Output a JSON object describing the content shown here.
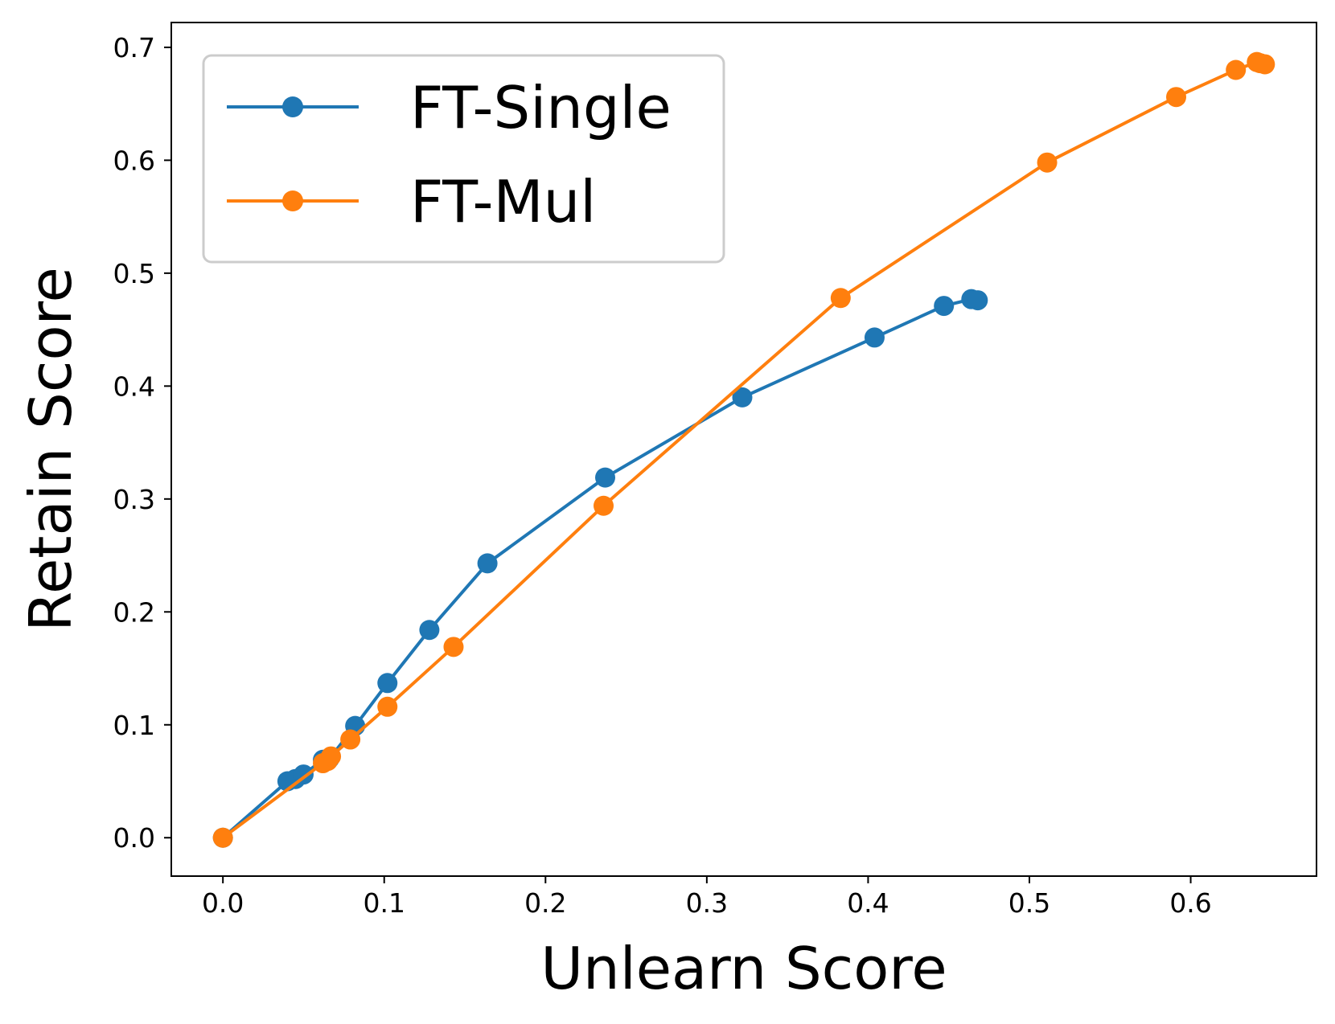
{
  "chart_data": {
    "type": "line",
    "title": "",
    "xlabel": "Unlearn Score",
    "ylabel": "Retain Score",
    "xlim": [
      -0.032,
      0.678
    ],
    "ylim": [
      -0.034,
      0.722
    ],
    "xticks": [
      "0.0",
      "0.1",
      "0.2",
      "0.3",
      "0.4",
      "0.5",
      "0.6"
    ],
    "yticks": [
      "0.0",
      "0.1",
      "0.2",
      "0.3",
      "0.4",
      "0.5",
      "0.6",
      "0.7"
    ],
    "xtick_values": [
      0.0,
      0.1,
      0.2,
      0.3,
      0.4,
      0.5,
      0.6
    ],
    "ytick_values": [
      0.0,
      0.1,
      0.2,
      0.3,
      0.4,
      0.5,
      0.6,
      0.7
    ],
    "grid": false,
    "legend_position": "top-left",
    "series": [
      {
        "name": "FT-Single",
        "color": "#1f77b4",
        "x": [
          0.0,
          0.04,
          0.045,
          0.05,
          0.062,
          0.066,
          0.082,
          0.102,
          0.128,
          0.164,
          0.237,
          0.322,
          0.404,
          0.447,
          0.464,
          0.468
        ],
        "y": [
          0.0,
          0.05,
          0.052,
          0.056,
          0.069,
          0.07,
          0.099,
          0.137,
          0.184,
          0.243,
          0.319,
          0.39,
          0.443,
          0.471,
          0.477,
          0.476
        ]
      },
      {
        "name": "FT-Mul",
        "color": "#ff7f0e",
        "x": [
          0.0,
          0.062,
          0.065,
          0.067,
          0.079,
          0.102,
          0.143,
          0.236,
          0.383,
          0.511,
          0.591,
          0.628,
          0.641,
          0.643,
          0.646
        ],
        "y": [
          0.0,
          0.066,
          0.068,
          0.072,
          0.087,
          0.116,
          0.169,
          0.294,
          0.478,
          0.598,
          0.656,
          0.68,
          0.687,
          0.686,
          0.685
        ]
      }
    ]
  }
}
